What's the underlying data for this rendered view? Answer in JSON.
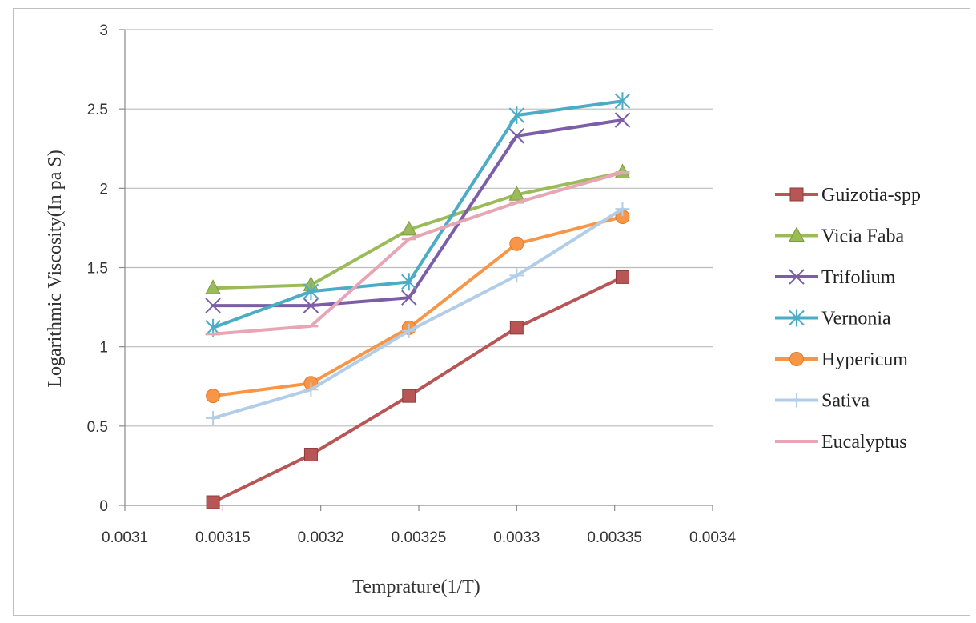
{
  "chart_data": {
    "type": "line",
    "title": "",
    "xlabel": "Temprature(1/T)",
    "ylabel": "Logarithmic Viscosity(In pa S)",
    "xlim": [
      0.0031,
      0.0034
    ],
    "ylim": [
      0,
      3
    ],
    "xticks": [
      "0.0031",
      "0.00315",
      "0.0032",
      "0.00325",
      "0.0033",
      "0.00335",
      "0.0034"
    ],
    "yticks": [
      "0",
      "0.5",
      "1",
      "1.5",
      "2",
      "2.5",
      "3"
    ],
    "grid": "horizontal",
    "legend_position": "right",
    "x": [
      0.003145,
      0.003195,
      0.003245,
      0.0033,
      0.003354
    ],
    "series": [
      {
        "name": "Guizotia-spp",
        "color": "#b85656",
        "marker": "square",
        "values": [
          0.02,
          0.32,
          0.69,
          1.12,
          1.44
        ]
      },
      {
        "name": "Vicia Faba",
        "color": "#9bbb59",
        "marker": "triangle",
        "values": [
          1.37,
          1.39,
          1.74,
          1.96,
          2.1
        ]
      },
      {
        "name": "Trifolium",
        "color": "#7b5ea7",
        "marker": "x",
        "values": [
          1.26,
          1.26,
          1.31,
          2.33,
          2.43
        ]
      },
      {
        "name": "Vernonia",
        "color": "#4bacc6",
        "marker": "asterisk",
        "values": [
          1.12,
          1.35,
          1.41,
          2.46,
          2.55
        ]
      },
      {
        "name": "Hypericum",
        "color": "#f79646",
        "marker": "circle",
        "values": [
          0.69,
          0.77,
          1.12,
          1.65,
          1.82
        ]
      },
      {
        "name": "Sativa",
        "color": "#b2cde8",
        "marker": "plus",
        "values": [
          0.55,
          0.73,
          1.1,
          1.45,
          1.87
        ]
      },
      {
        "name": "Eucalyptus",
        "color": "#e6a6b4",
        "marker": "dash",
        "values": [
          1.08,
          1.13,
          1.68,
          1.91,
          2.1
        ]
      }
    ]
  }
}
